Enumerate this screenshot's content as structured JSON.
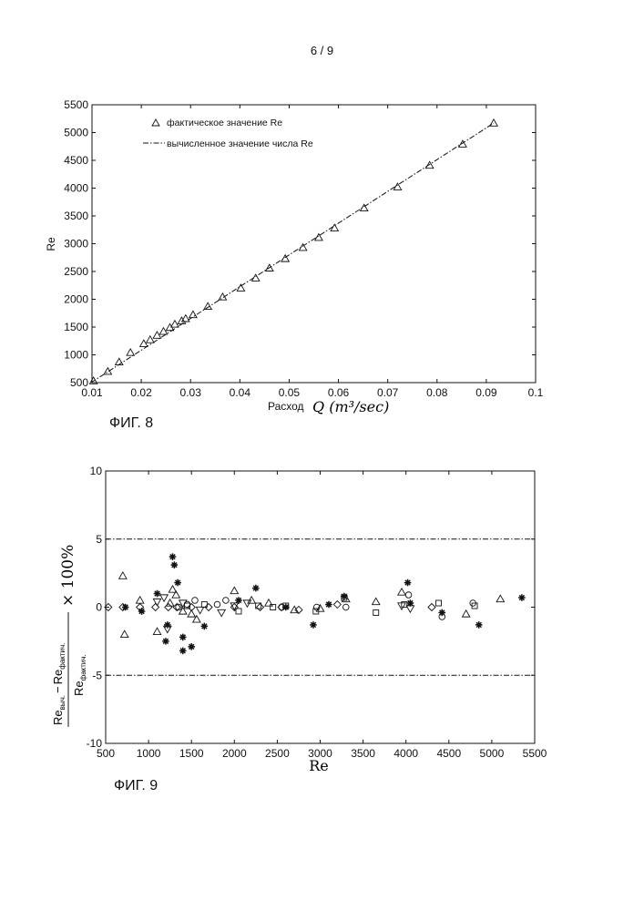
{
  "page": {
    "number_label": "6 / 9"
  },
  "chart_data": [
    {
      "type": "scatter",
      "figure_label": "ФИГ. 8",
      "xlabel_prefix": "Расход",
      "xlabel_math": "Q (m³/sec)",
      "ylabel": "Re",
      "xlim": [
        0.01,
        0.1
      ],
      "ylim": [
        500,
        5500
      ],
      "xticks": [
        "0.01",
        "0.02",
        "0.03",
        "0.04",
        "0.05",
        "0.06",
        "0.07",
        "0.08",
        "0.09",
        "0.1"
      ],
      "yticks": [
        "500",
        "1000",
        "1500",
        "2000",
        "2500",
        "3000",
        "3500",
        "4000",
        "4500",
        "5000",
        "5500"
      ],
      "legend": [
        "фактическое значение Re",
        "вычисленное значение числа Re"
      ],
      "series": [
        {
          "name": "фактическое значение Re",
          "marker": "triangle",
          "x": [
            0.0103,
            0.0132,
            0.0155,
            0.0178,
            0.0205,
            0.0218,
            0.0232,
            0.0245,
            0.0258,
            0.0268,
            0.0282,
            0.029,
            0.0305,
            0.0335,
            0.0365,
            0.0402,
            0.0432,
            0.046,
            0.0492,
            0.0528,
            0.056,
            0.0592,
            0.0652,
            0.072,
            0.0785,
            0.0852,
            0.0915
          ],
          "y": [
            530,
            700,
            870,
            1040,
            1200,
            1270,
            1350,
            1420,
            1490,
            1550,
            1610,
            1650,
            1720,
            1870,
            2040,
            2200,
            2380,
            2560,
            2730,
            2930,
            3110,
            3280,
            3640,
            4020,
            4410,
            4790,
            5170
          ]
        },
        {
          "name": "вычисленное значение числа Re",
          "style": "dash-dot",
          "x": [
            0.0098,
            0.0915
          ],
          "y": [
            500,
            5170
          ]
        }
      ]
    },
    {
      "type": "scatter",
      "figure_label": "ФИГ. 9",
      "xlabel": "Re",
      "ylabel_num_a": "Re",
      "ylabel_num_a_sub": "выч.",
      "ylabel_minus": "−",
      "ylabel_num_b": "Re",
      "ylabel_num_b_sub": "фактич.",
      "ylabel_den": "Re",
      "ylabel_den_sub": "фактич.",
      "ylabel_factor": "× 100%",
      "xlim": [
        500,
        5500
      ],
      "ylim": [
        -10,
        10
      ],
      "xticks": [
        "500",
        "1000",
        "1500",
        "2000",
        "2500",
        "3000",
        "3500",
        "4000",
        "4500",
        "5000",
        "5500"
      ],
      "yticks": [
        "-10",
        "-5",
        "0",
        "5",
        "10"
      ],
      "reference_lines": [
        5,
        -5
      ],
      "series": [
        {
          "name": "triangle",
          "marker": "triangle",
          "x": [
            700,
            720,
            900,
            1100,
            1250,
            1280,
            1320,
            1400,
            1500,
            1560,
            2000,
            2200,
            2400,
            2700,
            3000,
            3300,
            3650,
            3950,
            4700,
            5100
          ],
          "y": [
            2.3,
            -2.0,
            0.5,
            -1.8,
            0.3,
            1.3,
            0.9,
            -0.3,
            -0.5,
            -0.9,
            1.2,
            0.5,
            0.3,
            -0.2,
            -0.1,
            0.6,
            0.4,
            1.1,
            -0.5,
            0.6
          ]
        },
        {
          "name": "star",
          "marker": "star",
          "x": [
            730,
            920,
            1100,
            1200,
            1220,
            1280,
            1300,
            1340,
            1400,
            1400,
            1500,
            1650,
            2050,
            2250,
            2600,
            2920,
            3100,
            3280,
            4020,
            4050,
            4420,
            4850,
            5350
          ],
          "y": [
            0.0,
            -0.3,
            1.0,
            -2.5,
            -1.3,
            3.7,
            3.1,
            1.8,
            -2.2,
            -3.2,
            -2.9,
            -1.4,
            0.5,
            1.4,
            0.0,
            -1.3,
            0.2,
            0.8,
            1.8,
            0.3,
            -0.4,
            -1.3,
            0.7
          ]
        },
        {
          "name": "triangle-down",
          "marker": "triangle-down",
          "x": [
            1100,
            1180,
            1220,
            1400,
            1600,
            1850,
            2000,
            2150,
            3950,
            4050
          ],
          "y": [
            0.4,
            0.7,
            -1.6,
            0.3,
            -0.2,
            -0.4,
            0.1,
            0.3,
            0.1,
            -0.1
          ]
        },
        {
          "name": "circle",
          "marker": "circle",
          "x": [
            1350,
            1450,
            1540,
            1800,
            1900,
            2550,
            2960,
            3300,
            4030,
            4420,
            4780
          ],
          "y": [
            0.0,
            0.2,
            0.5,
            0.2,
            0.5,
            0.0,
            0.0,
            0.0,
            0.9,
            -0.7,
            0.3
          ]
        },
        {
          "name": "square",
          "marker": "square",
          "x": [
            1450,
            1650,
            2050,
            2280,
            2450,
            2600,
            2950,
            3280,
            3650,
            3980,
            4380,
            4800
          ],
          "y": [
            0.1,
            0.2,
            -0.3,
            0.1,
            0.0,
            0.1,
            -0.3,
            0.7,
            -0.4,
            0.2,
            0.3,
            0.1
          ]
        },
        {
          "name": "diamond",
          "marker": "diamond",
          "x": [
            530,
            700,
            900,
            1080,
            1230,
            1330,
            1500,
            1700,
            2000,
            2300,
            2550,
            2750,
            3200,
            4300
          ],
          "y": [
            0.0,
            0.0,
            0.0,
            0.0,
            0.0,
            0.0,
            0.0,
            0.0,
            0.0,
            0.0,
            0.0,
            -0.2,
            0.2,
            0.0
          ]
        }
      ]
    }
  ]
}
